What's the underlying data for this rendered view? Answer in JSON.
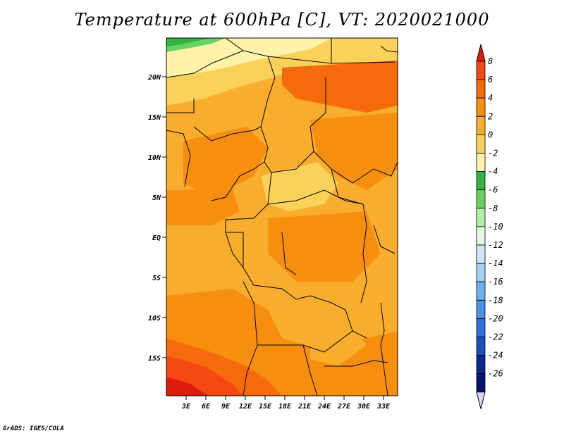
{
  "title": "Temperature at 600hPa [C], VT: 2020021000",
  "credit": "GrADS: IGES/COLA",
  "map": {
    "lat_labels": [
      "20N",
      "15N",
      "10N",
      "5N",
      "EQ",
      "5S",
      "10S",
      "15S"
    ],
    "lon_labels": [
      "3E",
      "6E",
      "9E",
      "12E",
      "15E",
      "18E",
      "21E",
      "24E",
      "27E",
      "30E",
      "33E"
    ]
  },
  "colorbar": {
    "levels": [
      "8",
      "6",
      "4",
      "2",
      "0",
      "-2",
      "-4",
      "-6",
      "-8",
      "-10",
      "-12",
      "-14",
      "-16",
      "-18",
      "-20",
      "-22",
      "-24",
      "-26"
    ],
    "colors": [
      "#e01d0c",
      "#f44a11",
      "#f56b0c",
      "#f78e0e",
      "#f9ad2c",
      "#fbd15a",
      "#fef3a8",
      "#30b53e",
      "#68d163",
      "#b2edaa",
      "#e6f9e0",
      "#cfe6f7",
      "#a1d0f3",
      "#6cb0ed",
      "#4a93e8",
      "#2f6fd9",
      "#1a4fc0",
      "#0c2a8e",
      "#051570",
      "#d9d7f2"
    ]
  }
}
